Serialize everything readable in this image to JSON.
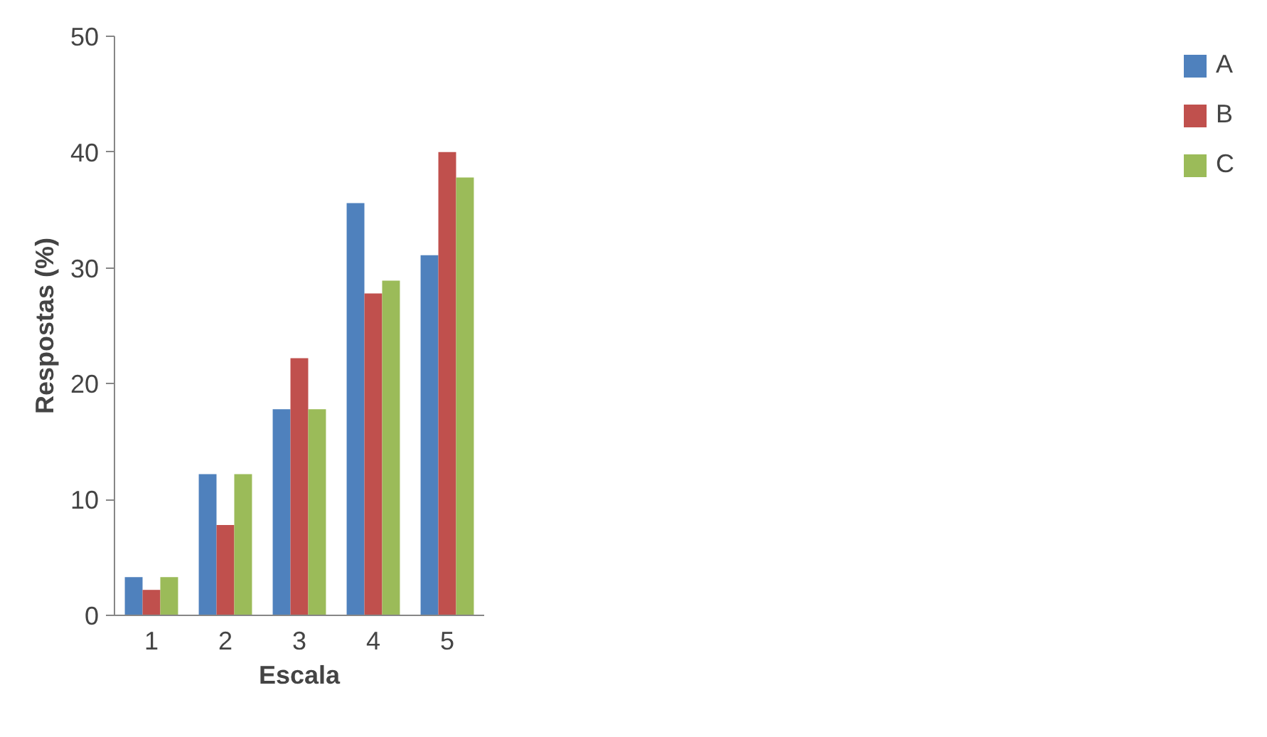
{
  "chart_data": {
    "type": "bar",
    "xlabel": "Escala",
    "ylabel": "Respostas (%)",
    "categories": [
      "1",
      "2",
      "3",
      "4",
      "5"
    ],
    "series": [
      {
        "name": "A",
        "color": "#4f81bd",
        "values": [
          3.3,
          12.2,
          17.8,
          35.6,
          31.1
        ]
      },
      {
        "name": "B",
        "color": "#c0504d",
        "values": [
          2.2,
          7.8,
          22.2,
          27.8,
          40.0
        ]
      },
      {
        "name": "C",
        "color": "#9bbb59",
        "values": [
          3.3,
          12.2,
          17.8,
          28.9,
          37.8
        ]
      }
    ],
    "ylim": [
      0,
      50
    ],
    "yticks": [
      0,
      10,
      20,
      30,
      40,
      50
    ],
    "grid": false,
    "legend": "right"
  }
}
